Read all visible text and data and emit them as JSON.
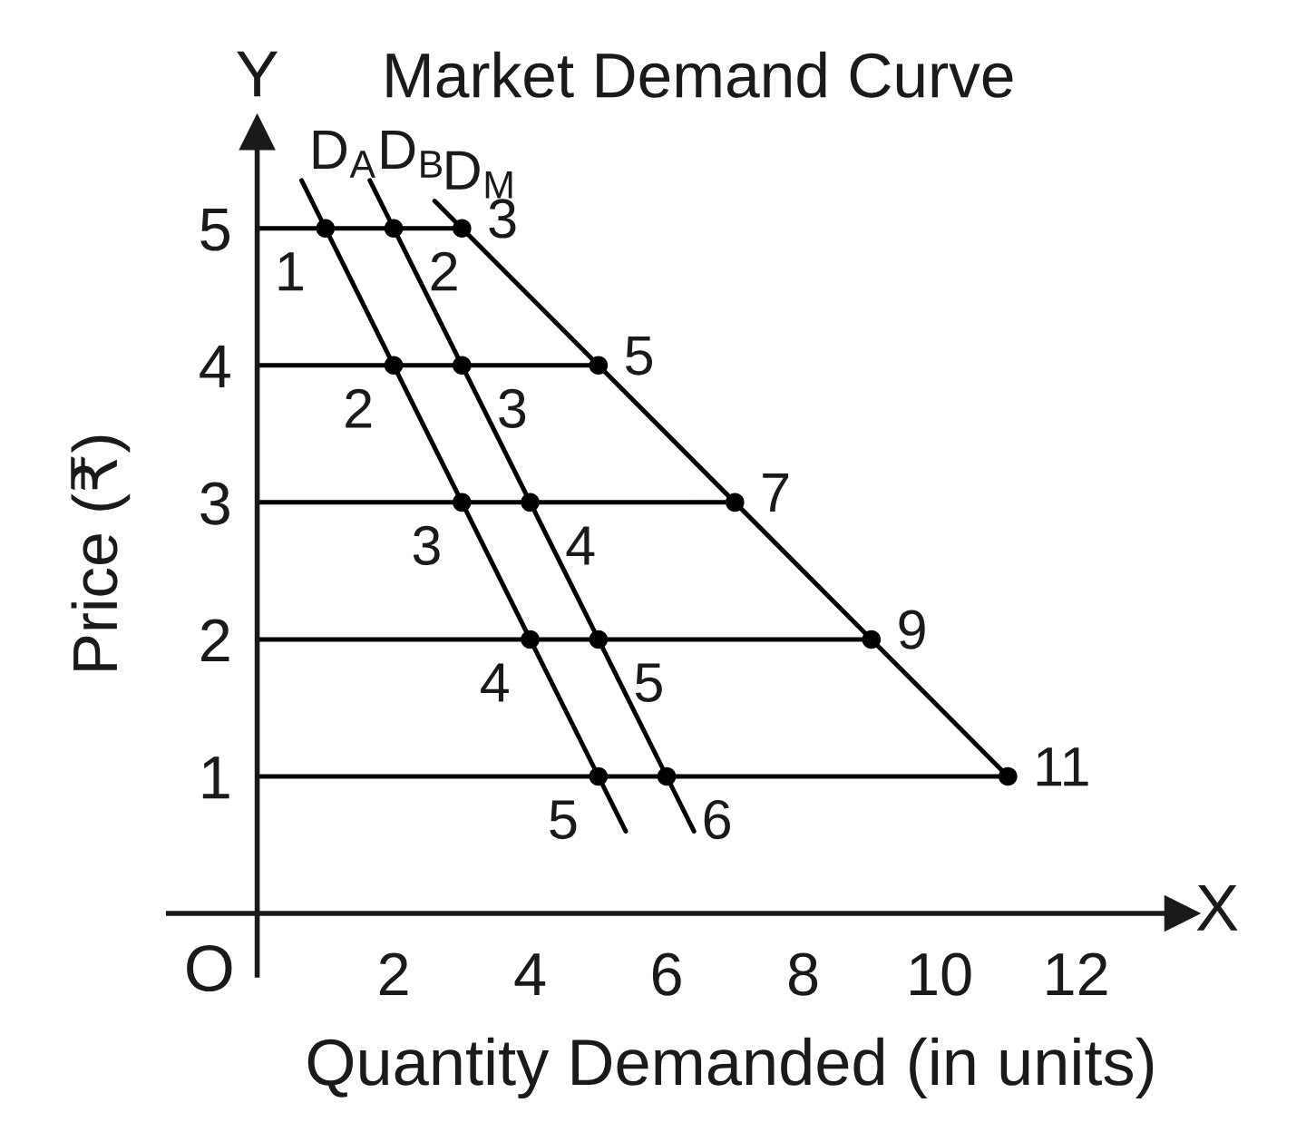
{
  "chart_data": {
    "type": "line",
    "title": "Market Demand Curve",
    "xlabel": "Quantity Demanded (in units)",
    "ylabel": "Price (₹)",
    "xlim": [
      -1.3,
      13.55
    ],
    "ylim": [
      -0.45,
      5.7
    ],
    "xticks": [
      2,
      4,
      6,
      8,
      10,
      12
    ],
    "yticks": [
      1,
      2,
      3,
      4,
      5
    ],
    "series": [
      {
        "name": "D$_{A}$",
        "color": "#000000",
        "x": [
          0.65,
          1,
          2,
          3,
          4,
          5,
          5.4
        ],
        "values": [
          5.35,
          5,
          4,
          3,
          2,
          1,
          0.6
        ]
      },
      {
        "name": "D$_{B}$",
        "color": "#000000",
        "x": [
          1.65,
          2,
          3,
          4,
          5,
          6,
          6.4
        ],
        "values": [
          5.35,
          5,
          4,
          3,
          2,
          1,
          0.6
        ]
      },
      {
        "name": "D$_{M}$",
        "color": "#000000",
        "x": [
          2.6,
          3,
          5,
          7,
          9,
          11
        ],
        "values": [
          5.2,
          5,
          4,
          3,
          2,
          1
        ]
      },
      {
        "type": "scatter",
        "marker": "circle",
        "color": "#000000",
        "x": [
          1,
          2,
          3,
          4,
          5,
          2,
          3,
          4,
          5,
          6,
          3,
          5,
          7,
          9,
          11
        ],
        "values": [
          5,
          4,
          3,
          2,
          1,
          5,
          4,
          3,
          2,
          1,
          5,
          4,
          3,
          2,
          1
        ]
      },
      {
        "color": "#000000",
        "x": [
          0,
          3
        ],
        "values": [
          5,
          5
        ]
      },
      {
        "color": "#000000",
        "x": [
          0,
          5
        ],
        "values": [
          4,
          4
        ]
      },
      {
        "color": "#000000",
        "x": [
          0,
          7
        ],
        "values": [
          3,
          3
        ]
      },
      {
        "color": "#000000",
        "x": [
          0,
          9
        ],
        "values": [
          2,
          2
        ]
      },
      {
        "color": "#000000",
        "x": [
          0,
          11
        ],
        "values": [
          1,
          1
        ]
      }
    ],
    "annotations": [
      "Y",
      "X",
      "O",
      {
        "text": "1",
        "x": 1,
        "y": 5
      },
      {
        "text": "2",
        "x": 2,
        "y": 4
      },
      {
        "text": "3",
        "x": 3,
        "y": 3
      },
      {
        "text": "4",
        "x": 4,
        "y": 2
      },
      {
        "text": "5",
        "x": 5,
        "y": 1
      },
      {
        "text": "2",
        "x": 2,
        "y": 5
      },
      {
        "text": "3",
        "x": 3,
        "y": 4
      },
      {
        "text": "4",
        "x": 4,
        "y": 3
      },
      {
        "text": "5",
        "x": 5,
        "y": 2
      },
      {
        "text": "6",
        "x": 6,
        "y": 1
      },
      {
        "text": "3",
        "x": 3,
        "y": 5
      },
      {
        "text": "5",
        "x": 5,
        "y": 4
      },
      {
        "text": "7",
        "x": 7,
        "y": 3
      },
      {
        "text": "9",
        "x": 9,
        "y": 2
      },
      {
        "text": "11",
        "x": 11,
        "y": 1
      }
    ]
  }
}
